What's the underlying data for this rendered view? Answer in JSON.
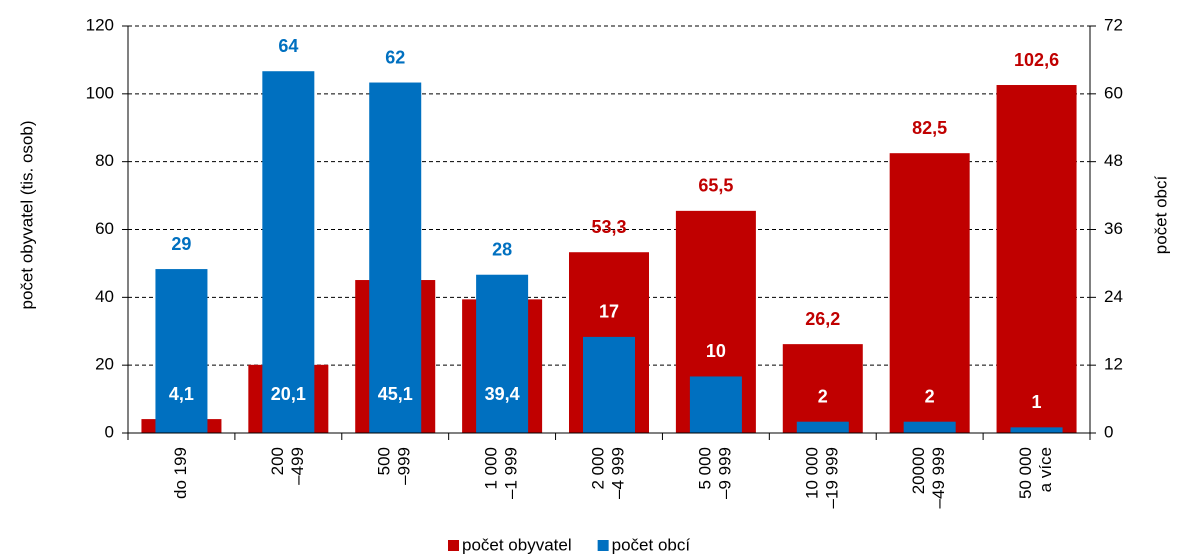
{
  "chart_data": {
    "type": "bar",
    "y_label": "počet obyvatel (tis. osob)",
    "y2_label": "počet obcí",
    "categories": [
      [
        "do 199"
      ],
      [
        "200",
        "–499"
      ],
      [
        "500",
        "–999"
      ],
      [
        "1 000",
        "–1 999"
      ],
      [
        "2 000",
        "–4 999"
      ],
      [
        "5 000",
        "–9 999"
      ],
      [
        "10 000",
        "–19 999"
      ],
      [
        "20000",
        "–49 999"
      ],
      [
        "50 000",
        "a více"
      ]
    ],
    "series": [
      {
        "name": "počet obyvatel",
        "color": "#c00000",
        "axis": "y",
        "values": [
          4.1,
          20.1,
          45.1,
          39.4,
          53.3,
          65.5,
          26.2,
          82.5,
          102.6
        ],
        "value_labels": [
          "4,1",
          "20,1",
          "45,1",
          "39,4",
          "53,3",
          "65,5",
          "26,2",
          "82,5",
          "102,6"
        ]
      },
      {
        "name": "počet obcí",
        "color": "#0070c0",
        "axis": "y2",
        "values": [
          29,
          64,
          62,
          28,
          17,
          10,
          2,
          2,
          1
        ]
      }
    ],
    "ylim": [
      0,
      120
    ],
    "yticks": [
      0,
      20,
      40,
      60,
      80,
      100,
      120
    ],
    "y2lim": [
      0,
      72
    ],
    "y2ticks": [
      0,
      12,
      24,
      36,
      48,
      60,
      72
    ],
    "grid": true,
    "legend": "bottom"
  }
}
